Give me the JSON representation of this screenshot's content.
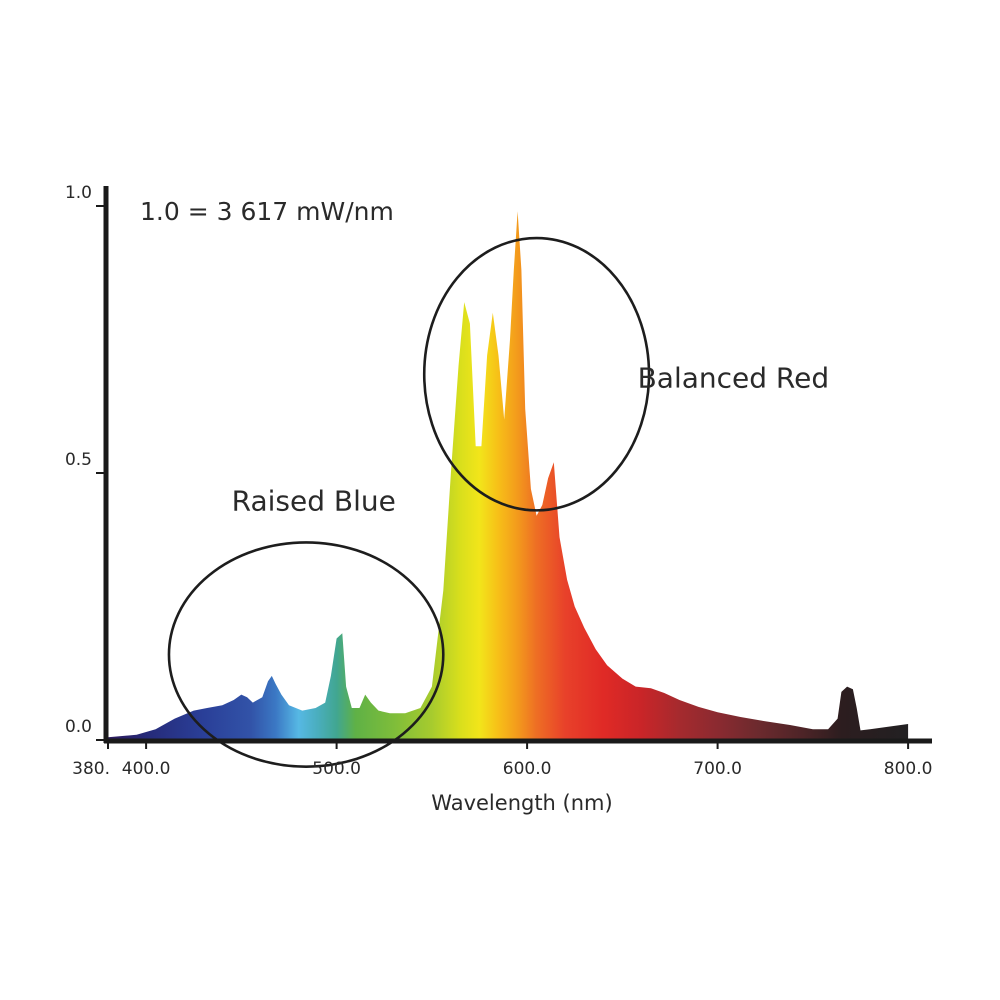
{
  "chart_data": {
    "type": "area",
    "title": "",
    "scale_note": "1.0 = 3 617 mW/nm",
    "xlabel": "Wavelength (nm)",
    "ylabel": "",
    "xlim": [
      380,
      815
    ],
    "ylim": [
      0,
      1.0
    ],
    "grid": false,
    "legend": "none",
    "x_ticks": [
      {
        "value": 380,
        "label": "380."
      },
      {
        "value": 400,
        "label": "400.0"
      },
      {
        "value": 500,
        "label": "500.0"
      },
      {
        "value": 600,
        "label": "600.0"
      },
      {
        "value": 700,
        "label": "700.0"
      },
      {
        "value": 800,
        "label": "800.0"
      }
    ],
    "y_ticks": [
      {
        "value": 0,
        "label": "0.0"
      },
      {
        "value": 0.5,
        "label": "0.5"
      },
      {
        "value": 1.0,
        "label": "1.0"
      }
    ],
    "series": [
      {
        "fill": "spectral",
        "x": [
          380,
          395,
          405,
          415,
          425,
          432,
          440,
          446,
          450,
          453,
          456,
          461,
          464,
          466,
          468,
          471,
          475,
          482,
          489,
          494,
          497,
          500,
          503,
          505,
          508,
          512,
          515,
          518,
          522,
          528,
          536,
          544,
          550,
          556,
          560,
          564,
          567,
          570,
          573,
          576,
          579,
          582,
          585,
          588,
          591,
          593,
          595,
          597,
          599,
          602,
          605,
          608,
          611,
          614,
          617,
          621,
          625,
          630,
          636,
          642,
          650,
          657,
          665,
          672,
          680,
          690,
          700,
          712,
          725,
          738,
          750,
          758,
          763,
          765,
          768,
          771,
          773,
          775,
          780,
          790,
          800
        ],
        "y": [
          0.005,
          0.01,
          0.02,
          0.04,
          0.055,
          0.06,
          0.065,
          0.075,
          0.085,
          0.08,
          0.07,
          0.08,
          0.11,
          0.12,
          0.105,
          0.085,
          0.065,
          0.055,
          0.06,
          0.07,
          0.12,
          0.19,
          0.2,
          0.1,
          0.06,
          0.06,
          0.085,
          0.07,
          0.055,
          0.05,
          0.05,
          0.06,
          0.1,
          0.28,
          0.5,
          0.7,
          0.82,
          0.78,
          0.55,
          0.55,
          0.72,
          0.8,
          0.72,
          0.6,
          0.75,
          0.88,
          0.99,
          0.88,
          0.62,
          0.47,
          0.42,
          0.44,
          0.49,
          0.52,
          0.38,
          0.3,
          0.25,
          0.21,
          0.17,
          0.14,
          0.115,
          0.1,
          0.097,
          0.088,
          0.075,
          0.062,
          0.052,
          0.043,
          0.035,
          0.028,
          0.02,
          0.02,
          0.04,
          0.09,
          0.1,
          0.095,
          0.06,
          0.018,
          0.02,
          0.025,
          0.03
        ]
      }
    ],
    "annotations": [
      {
        "text": "Raised Blue",
        "x": 488,
        "y": 0.43,
        "circle": {
          "cx": 484,
          "cy": 0.16,
          "rx": 72,
          "ry": 0.21
        }
      },
      {
        "text": "Balanced Red",
        "x": 658,
        "y": 0.66,
        "circle": {
          "cx": 605,
          "cy": 0.685,
          "rx": 59,
          "ry": 0.255
        }
      }
    ]
  }
}
